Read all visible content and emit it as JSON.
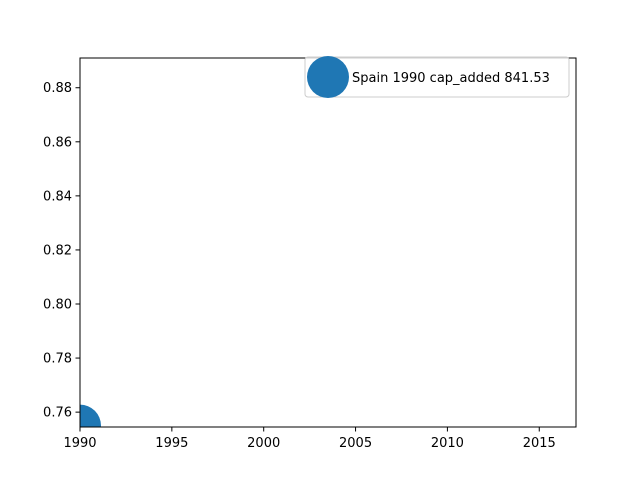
{
  "chart_data": {
    "type": "scatter",
    "title": "",
    "xlabel": "",
    "ylabel": "",
    "xlim": [
      1990,
      2017
    ],
    "ylim": [
      0.7545,
      0.891
    ],
    "x_ticks": [
      "1990",
      "1995",
      "2000",
      "2005",
      "2010",
      "2015"
    ],
    "y_ticks": [
      "0.76",
      "0.78",
      "0.80",
      "0.82",
      "0.84",
      "0.86",
      "0.88"
    ],
    "grid": false,
    "legend_position": "top-right",
    "legend_marker_color": "#1f77b4",
    "series": [
      {
        "name": "Spain 1990 cap_added 841.53",
        "color": "#1f77b4",
        "points": [
          {
            "x": 1990,
            "y": 0.755
          }
        ]
      }
    ]
  }
}
